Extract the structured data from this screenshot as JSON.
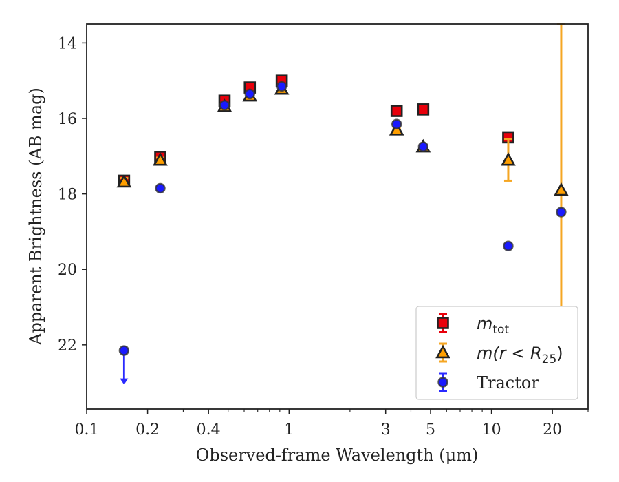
{
  "chart_data": {
    "type": "scatter",
    "xlabel": "Observed-frame Wavelength (μm)",
    "ylabel": "Apparent Brightness (AB mag)",
    "xscale": "log",
    "xlim": [
      0.1,
      30
    ],
    "ylim": [
      23.7,
      13.5
    ],
    "y_inverted": true,
    "xticks": [
      {
        "value": 0.1,
        "label": "0.1"
      },
      {
        "value": 0.2,
        "label": "0.2"
      },
      {
        "value": 0.4,
        "label": "0.4"
      },
      {
        "value": 1,
        "label": "1"
      },
      {
        "value": 3,
        "label": "3"
      },
      {
        "value": 5,
        "label": "5"
      },
      {
        "value": 10,
        "label": "10"
      },
      {
        "value": 20,
        "label": "20"
      }
    ],
    "yticks": [
      {
        "value": 14,
        "label": "14"
      },
      {
        "value": 16,
        "label": "16"
      },
      {
        "value": 18,
        "label": "18"
      },
      {
        "value": 20,
        "label": "20"
      },
      {
        "value": 22,
        "label": "22"
      }
    ],
    "grid": false,
    "legend_position": "lower right",
    "series": [
      {
        "name": "m_tot",
        "legend_main": "m",
        "legend_sub": "tot",
        "marker": "square",
        "face_color": "#e8000b",
        "edge_color": "#222222",
        "error_color": "#e8000b",
        "points": [
          {
            "x": 0.153,
            "y": 17.65,
            "err": 0.12
          },
          {
            "x": 0.231,
            "y": 17.02,
            "err": 0.05
          },
          {
            "x": 0.48,
            "y": 15.53,
            "err": 0.03
          },
          {
            "x": 0.64,
            "y": 15.18,
            "err": 0.03
          },
          {
            "x": 0.92,
            "y": 15.0,
            "err": 0.03
          },
          {
            "x": 3.4,
            "y": 15.8,
            "err": 0.03
          },
          {
            "x": 4.6,
            "y": 15.76,
            "err": 0.03
          },
          {
            "x": 12.1,
            "y": 16.5,
            "err": 0.05
          }
        ]
      },
      {
        "name": "m(r<R25)",
        "legend_main": "m(r < R",
        "legend_sub": "25",
        "legend_end": ")",
        "marker": "triangle",
        "face_color": "#ff9f00",
        "edge_color": "#222222",
        "error_color": "#f5a623",
        "points": [
          {
            "x": 0.153,
            "y": 17.68,
            "err": 0.1
          },
          {
            "x": 0.231,
            "y": 17.1,
            "err": 0.06
          },
          {
            "x": 0.48,
            "y": 15.68,
            "err": 0.03
          },
          {
            "x": 0.64,
            "y": 15.4,
            "err": 0.03
          },
          {
            "x": 0.92,
            "y": 15.22,
            "err": 0.03
          },
          {
            "x": 3.4,
            "y": 16.3,
            "err": 0.05
          },
          {
            "x": 4.6,
            "y": 16.75,
            "err": 0.05
          },
          {
            "x": 12.1,
            "y": 17.1,
            "err": 0.55
          },
          {
            "x": 22.1,
            "y": 17.9,
            "err_up": 4.4,
            "err_down": 5.2
          }
        ]
      },
      {
        "name": "Tractor",
        "legend_main": "Tractor",
        "marker": "circle",
        "face_color": "#1a1aff",
        "edge_color": "#333333",
        "error_color": "#2a2aff",
        "points": [
          {
            "x": 0.153,
            "y": 22.15,
            "upper_limit": true
          },
          {
            "x": 0.231,
            "y": 17.85,
            "err": 0.05
          },
          {
            "x": 0.48,
            "y": 15.65,
            "err": 0.05
          },
          {
            "x": 0.64,
            "y": 15.35,
            "err": 0.05
          },
          {
            "x": 0.92,
            "y": 15.15,
            "err": 0.05
          },
          {
            "x": 3.4,
            "y": 16.15,
            "err": 0.05
          },
          {
            "x": 4.6,
            "y": 16.75,
            "err": 0.05
          },
          {
            "x": 12.1,
            "y": 19.38,
            "err": 0.05
          },
          {
            "x": 22.1,
            "y": 18.48,
            "err": 0.05
          }
        ]
      }
    ]
  }
}
